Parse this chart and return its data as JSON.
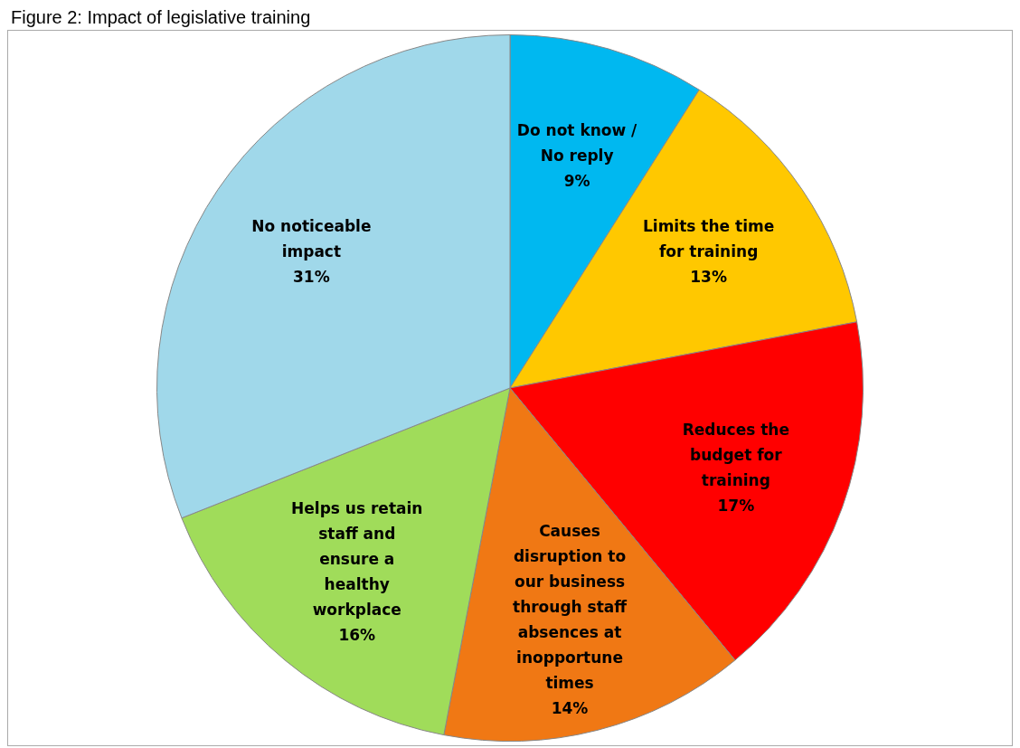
{
  "chart_data": {
    "type": "pie",
    "title": "Figure 2: Impact of legislative training",
    "categories": [
      "Do not know / No reply",
      "Limits the time for training",
      "Reduces the budget for training",
      "Causes disruption to our business through staff absences at inopportune times",
      "Helps us retain staff and ensure a healthy workplace",
      "No noticeable impact"
    ],
    "values": [
      9,
      13,
      17,
      14,
      16,
      31
    ],
    "colors": [
      "#00b8f0",
      "#ffc800",
      "#ff0000",
      "#f07814",
      "#a0dc5a",
      "#a0d8ea"
    ],
    "value_labels": [
      "9%",
      "13%",
      "17%",
      "14%",
      "16%",
      "31%"
    ],
    "legend": false
  }
}
